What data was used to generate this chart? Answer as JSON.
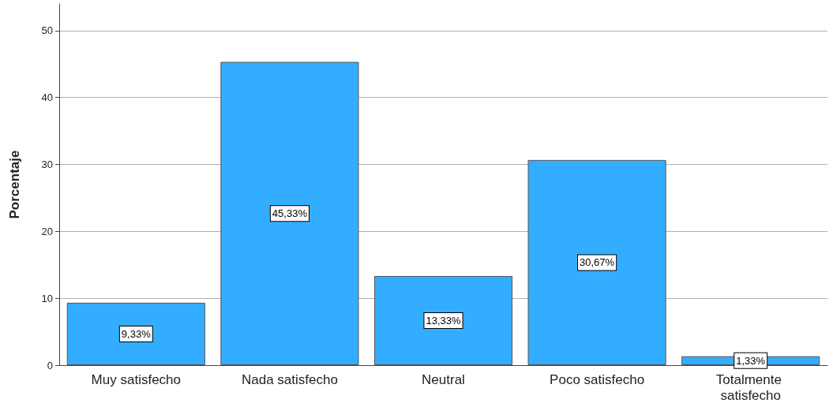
{
  "chart_data": {
    "type": "bar",
    "ylabel": "Porcentaje",
    "categories": [
      "Muy satisfecho",
      "Nada satisfecho",
      "Neutral",
      "Poco satisfecho",
      "Totalmente satisfecho"
    ],
    "values": [
      9.33,
      45.33,
      13.33,
      30.67,
      1.33
    ],
    "value_labels": [
      "9,33%",
      "45,33%",
      "13,33%",
      "30,67%",
      "1,33%"
    ],
    "color": "#33adff",
    "ylim": [
      0,
      54
    ],
    "yticks": [
      0,
      10,
      20,
      30,
      40,
      50
    ],
    "grid": "y"
  }
}
